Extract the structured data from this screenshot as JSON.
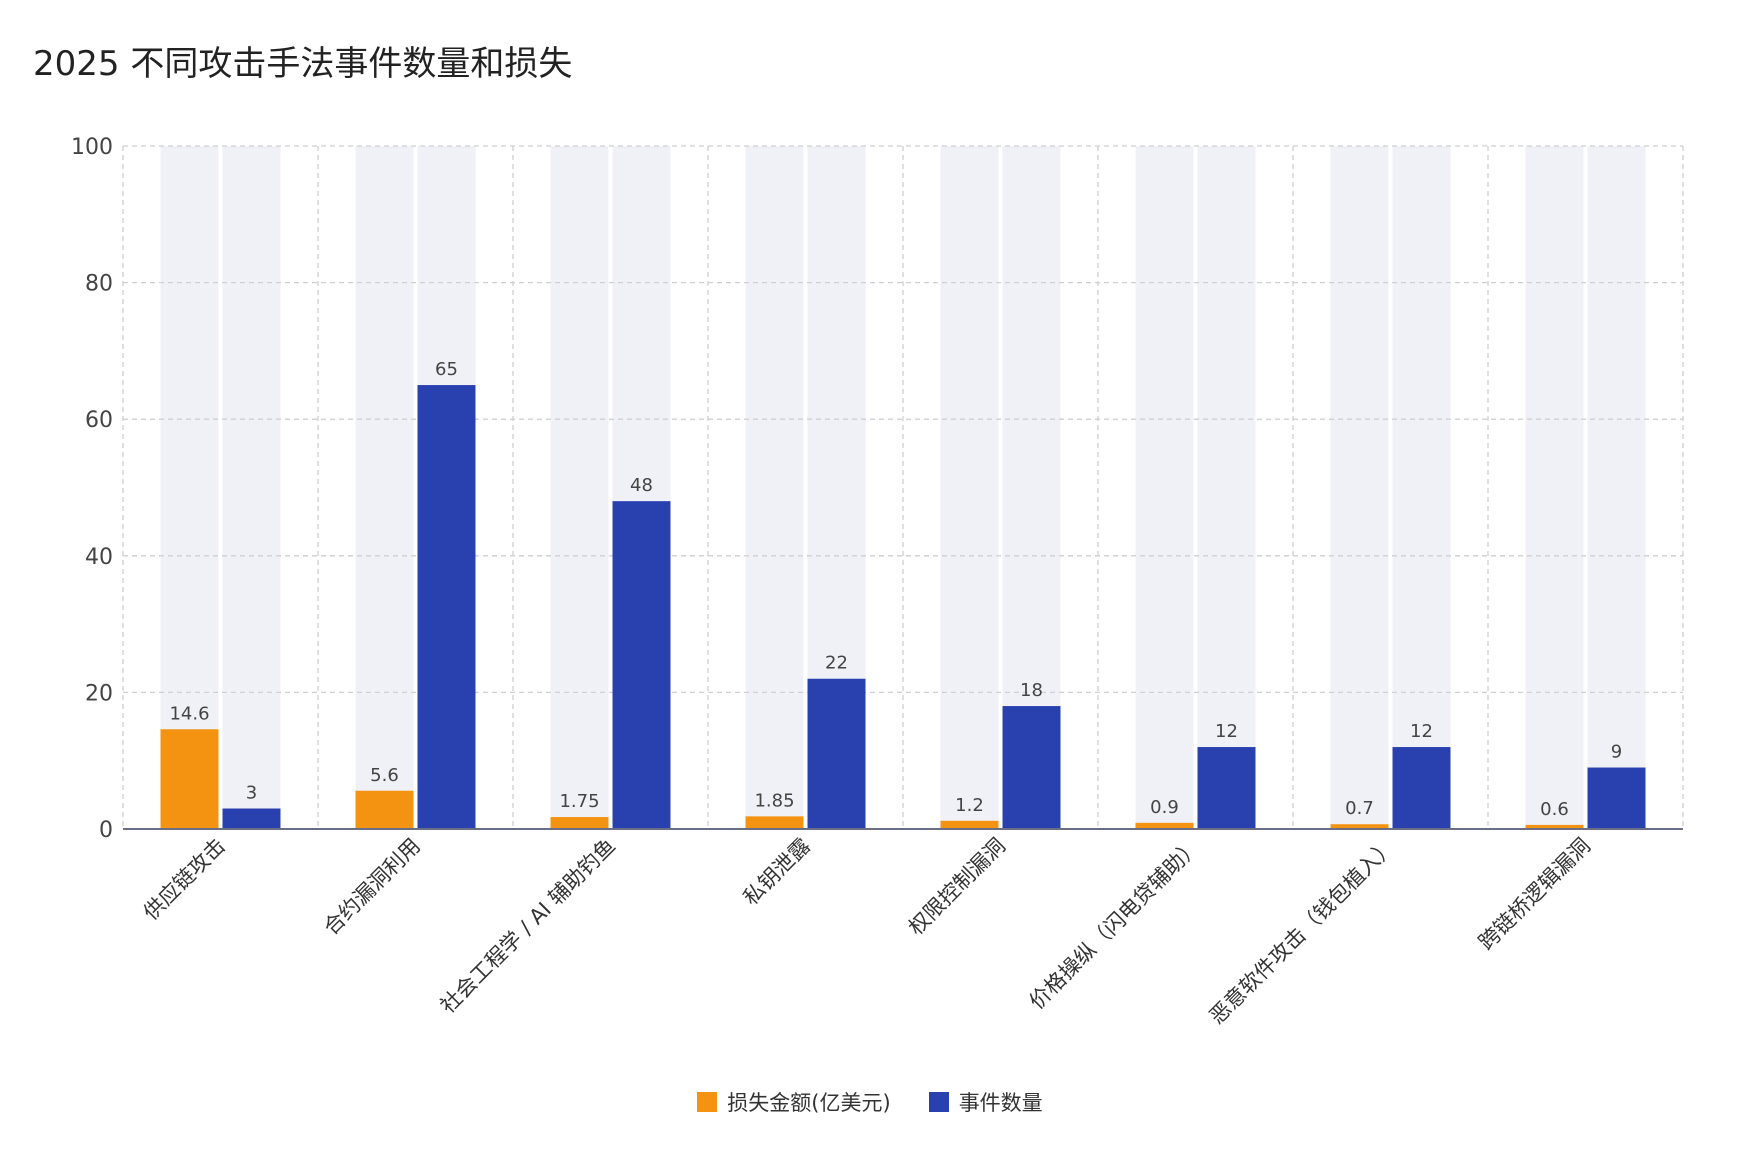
{
  "chart_data": {
    "type": "bar",
    "title": "2025 不同攻击手法事件数量和损失",
    "categories": [
      "供应链攻击",
      "合约漏洞利用",
      "社会工程学 / AI 辅助钓鱼",
      "私钥泄露",
      "权限控制漏洞",
      "价格操纵（闪电贷辅助）",
      "恶意软件攻击（钱包植入）",
      "跨链桥逻辑漏洞"
    ],
    "series": [
      {
        "name": "损失金额(亿美元)",
        "color": "#f39311",
        "values": [
          14.6,
          5.6,
          1.75,
          1.85,
          1.2,
          0.9,
          0.7,
          0.6
        ],
        "labels": [
          "14.6",
          "5.6",
          "1.75",
          "1.85",
          "1.2",
          "0.9",
          "0.7",
          "0.6"
        ]
      },
      {
        "name": "事件数量",
        "color": "#2841ae",
        "values": [
          3,
          65,
          48,
          22,
          18,
          12,
          12,
          9
        ],
        "labels": [
          "3",
          "65",
          "48",
          "22",
          "18",
          "12",
          "12",
          "9"
        ]
      }
    ],
    "ylim": [
      0,
      100
    ],
    "yticks": [
      0,
      20,
      40,
      60,
      80,
      100
    ],
    "ytick_labels": [
      "0",
      "20",
      "40",
      "60",
      "80",
      "100"
    ],
    "grid": true,
    "legend_position": "bottom-center",
    "bar_background": "#f0f1f7"
  }
}
